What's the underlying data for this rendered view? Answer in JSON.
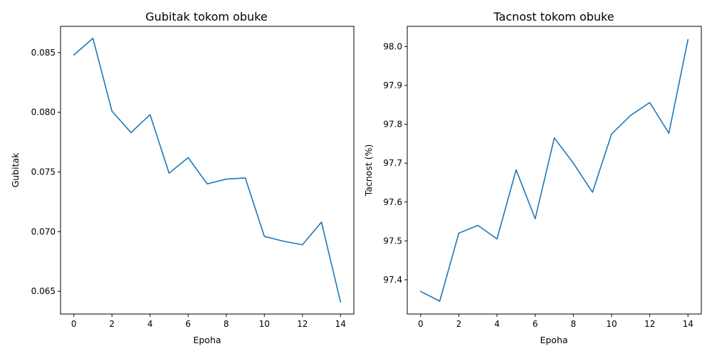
{
  "chart_data": [
    {
      "type": "line",
      "title": "Gubitak tokom obuke",
      "xlabel": "Epoha",
      "ylabel": "Gubitak",
      "x": [
        0,
        1,
        2,
        3,
        4,
        5,
        6,
        7,
        8,
        9,
        10,
        11,
        12,
        13,
        14
      ],
      "series": [
        {
          "values": [
            0.0848,
            0.0862,
            0.0801,
            0.0783,
            0.0798,
            0.0749,
            0.0762,
            0.074,
            0.0744,
            0.0745,
            0.0696,
            0.0692,
            0.0689,
            0.0708,
            0.0641
          ],
          "color": "#1f77b4"
        }
      ],
      "xlim": [
        -0.7,
        14.7
      ],
      "ylim": [
        0.0631,
        0.0872
      ],
      "xticks": [
        0,
        2,
        4,
        6,
        8,
        10,
        12,
        14
      ],
      "xtick_labels": [
        "0",
        "2",
        "4",
        "6",
        "8",
        "10",
        "12",
        "14"
      ],
      "yticks": [
        0.065,
        0.07,
        0.075,
        0.08,
        0.085
      ],
      "ytick_labels": [
        "0.065",
        "0.070",
        "0.075",
        "0.080",
        "0.085"
      ],
      "grid": false
    },
    {
      "type": "line",
      "title": "Tacnost tokom obuke",
      "xlabel": "Epoha",
      "ylabel": "Tacnost (%)",
      "x": [
        0,
        1,
        2,
        3,
        4,
        5,
        6,
        7,
        8,
        9,
        10,
        11,
        12,
        13,
        14
      ],
      "series": [
        {
          "values": [
            97.37,
            97.345,
            97.52,
            97.54,
            97.505,
            97.683,
            97.557,
            97.765,
            97.7,
            97.625,
            97.775,
            97.823,
            97.856,
            97.777,
            98.018
          ],
          "color": "#1f77b4"
        }
      ],
      "xlim": [
        -0.7,
        14.7
      ],
      "ylim": [
        97.312,
        98.052
      ],
      "xticks": [
        0,
        2,
        4,
        6,
        8,
        10,
        12,
        14
      ],
      "xtick_labels": [
        "0",
        "2",
        "4",
        "6",
        "8",
        "10",
        "12",
        "14"
      ],
      "yticks": [
        97.4,
        97.5,
        97.6,
        97.7,
        97.8,
        97.9,
        98.0
      ],
      "ytick_labels": [
        "97.4",
        "97.5",
        "97.6",
        "97.7",
        "97.8",
        "97.9",
        "98.0"
      ],
      "grid": false
    }
  ]
}
